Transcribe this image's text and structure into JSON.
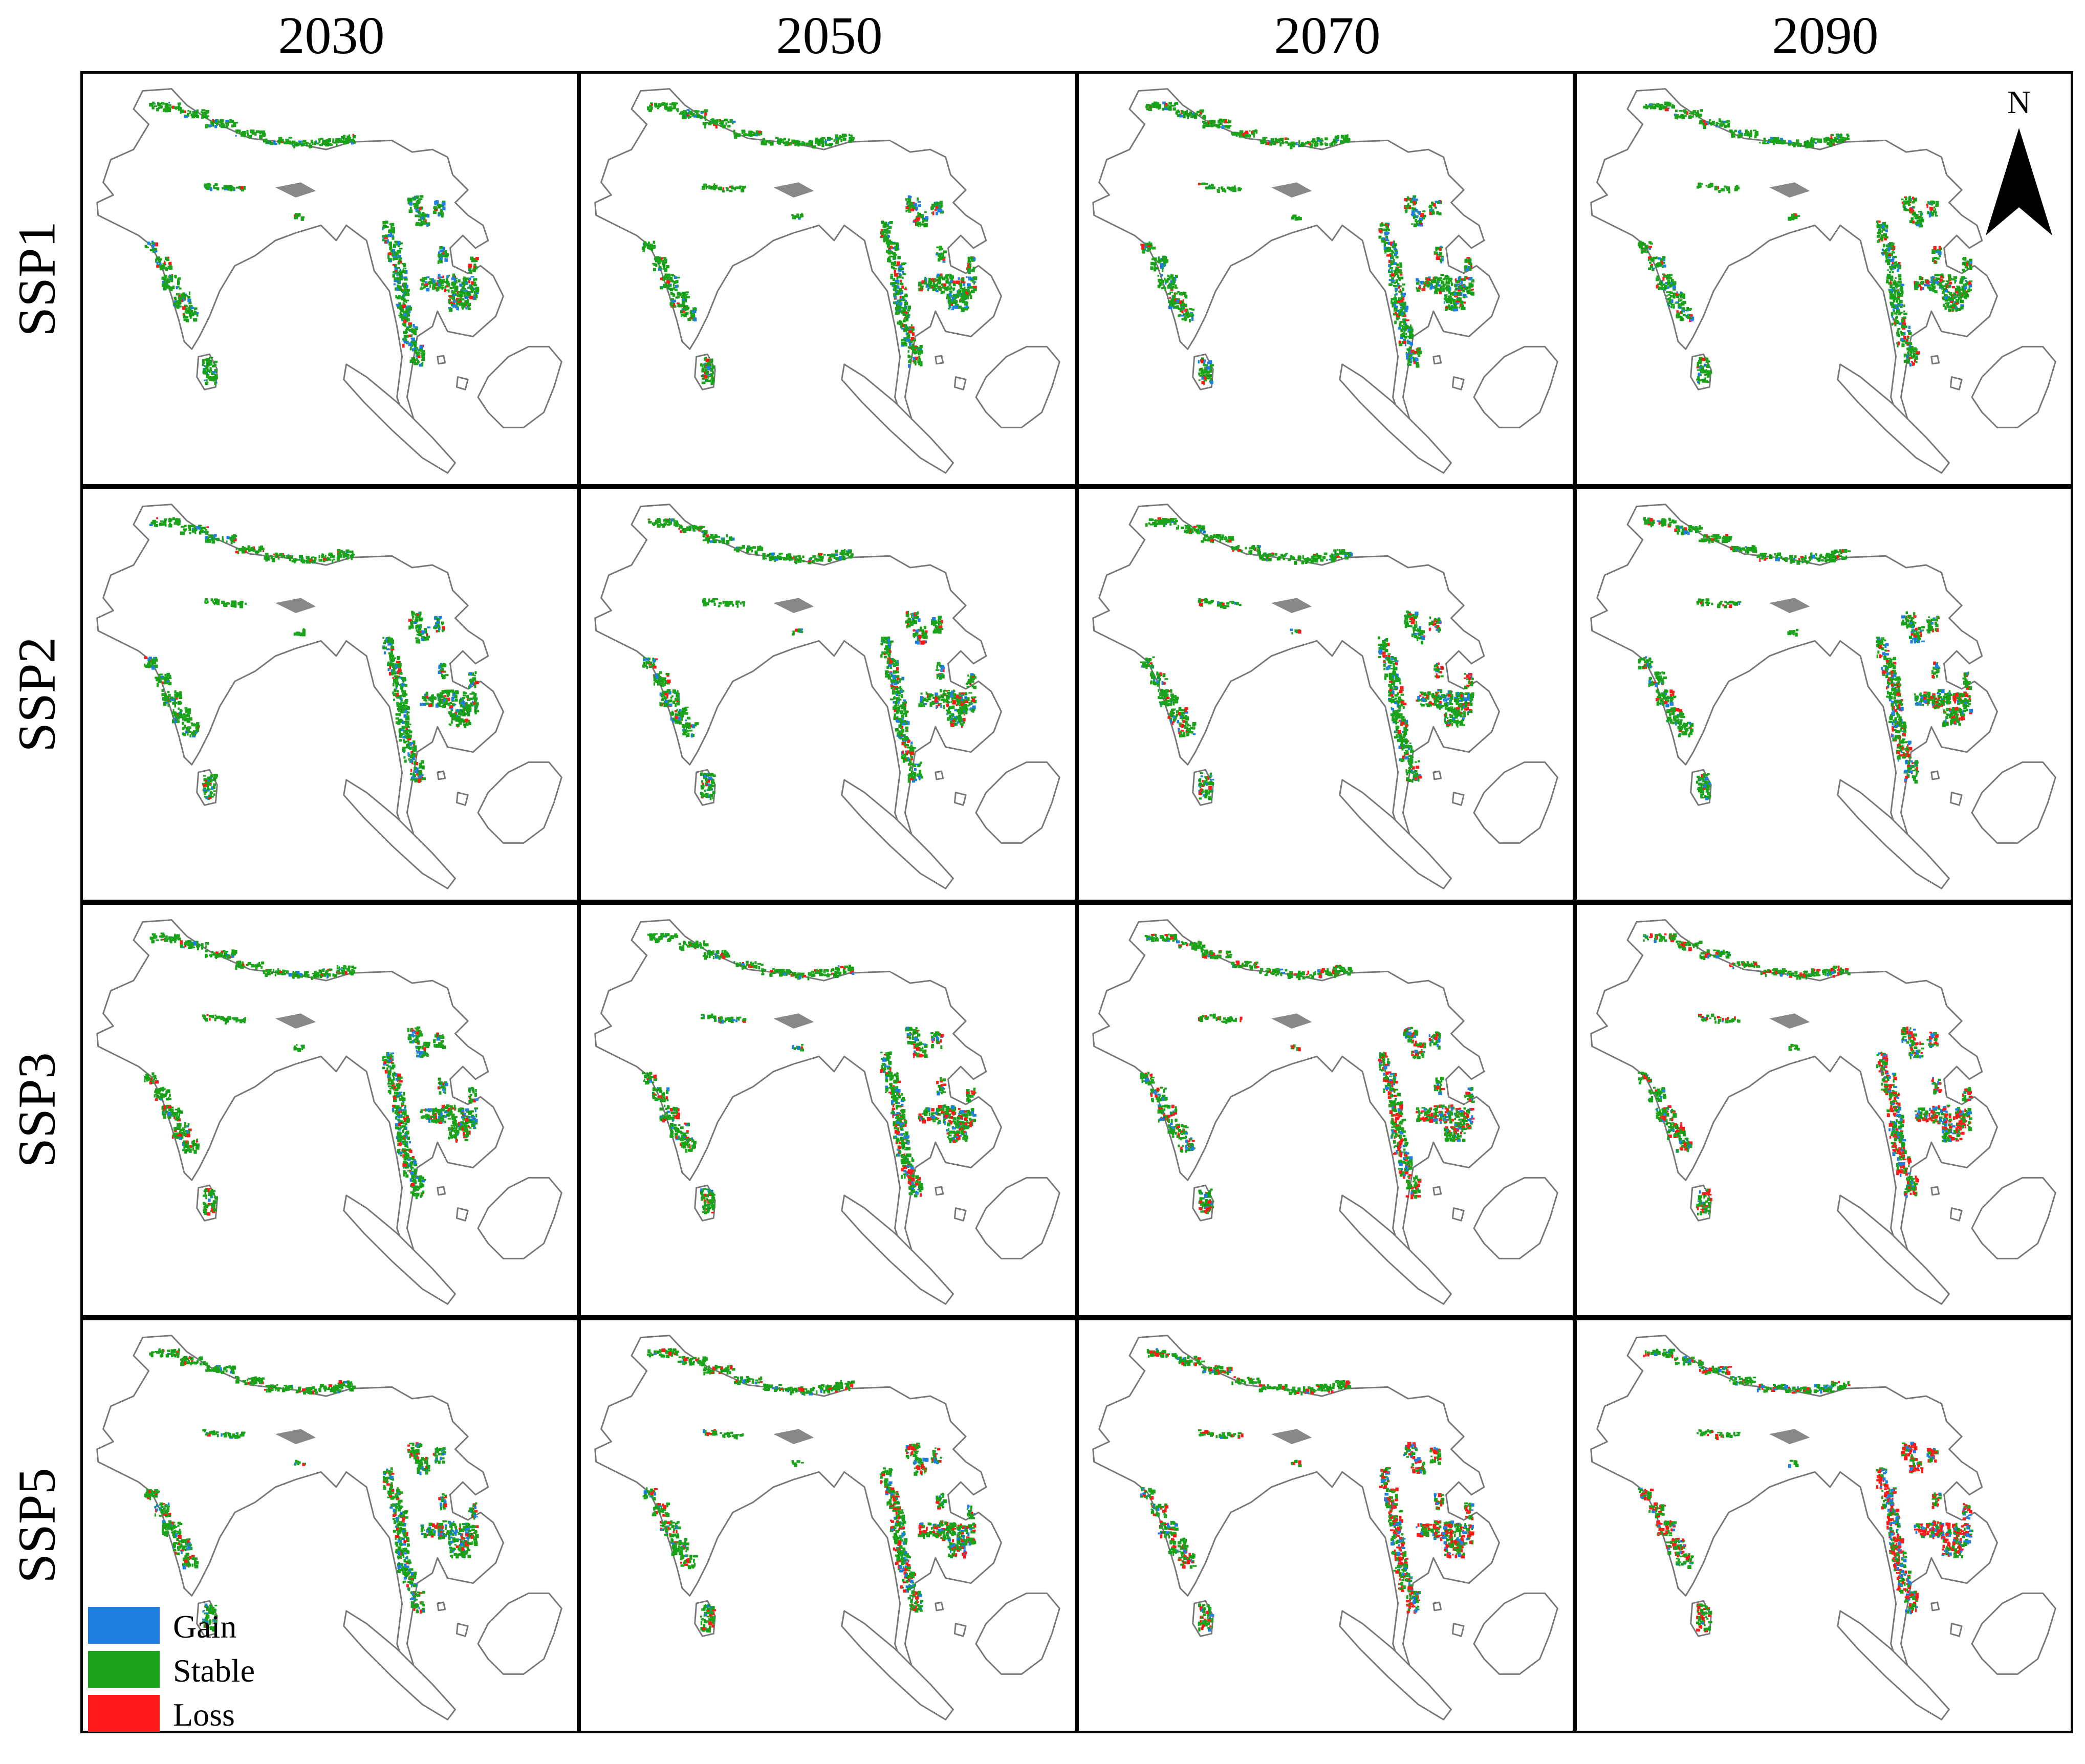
{
  "figure": {
    "columns": [
      "2030",
      "2050",
      "2070",
      "2090"
    ],
    "rows": [
      "SSP1",
      "SSP2",
      "SSP3",
      "SSP5"
    ],
    "north_label": "N"
  },
  "legend": {
    "items": [
      {
        "label": "Gain",
        "color": "#1f7fe0"
      },
      {
        "label": "Stable",
        "color": "#1aa31a"
      },
      {
        "label": "Loss",
        "color": "#ff1a1a"
      }
    ]
  },
  "colors": {
    "land_outline": "#777777",
    "land_fill": "#ffffff",
    "frame": "#000000"
  },
  "panels_loss_intensity": [
    [
      0.15,
      0.18,
      0.2,
      0.22
    ],
    [
      0.18,
      0.22,
      0.28,
      0.32
    ],
    [
      0.22,
      0.35,
      0.5,
      0.7
    ],
    [
      0.25,
      0.4,
      0.62,
      0.85
    ]
  ],
  "panels_gain_intensity": [
    [
      0.55,
      0.5,
      0.5,
      0.48
    ],
    [
      0.5,
      0.48,
      0.45,
      0.5
    ],
    [
      0.45,
      0.4,
      0.45,
      0.6
    ],
    [
      0.45,
      0.4,
      0.5,
      0.62
    ]
  ]
}
